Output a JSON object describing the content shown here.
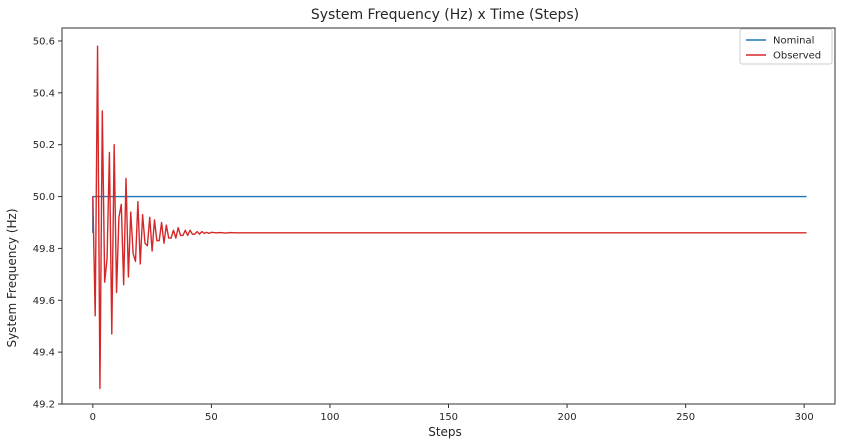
{
  "chart_data": {
    "type": "line",
    "title": "System Frequency (Hz) x Time (Steps)",
    "xlabel": "Steps",
    "ylabel": "System Frequency (Hz)",
    "xlim": [
      -13,
      313
    ],
    "ylim": [
      49.2,
      50.65
    ],
    "x_ticks": [
      0,
      50,
      100,
      150,
      200,
      250,
      300
    ],
    "y_ticks": [
      49.2,
      49.4,
      49.6,
      49.8,
      50.0,
      50.2,
      50.4,
      50.6
    ],
    "grid": false,
    "legend_position": "top-right",
    "series": [
      {
        "name": "Nominal",
        "color": "#1f77b4",
        "x": [
          0,
          0,
          301
        ],
        "y": [
          49.86,
          50.0,
          50.0
        ]
      },
      {
        "name": "Observed",
        "color": "#d62728",
        "x": [
          0,
          1,
          2,
          3,
          4,
          5,
          6,
          7,
          8,
          9,
          10,
          11,
          12,
          13,
          14,
          15,
          16,
          17,
          18,
          19,
          20,
          21,
          22,
          23,
          24,
          25,
          26,
          27,
          28,
          29,
          30,
          31,
          32,
          33,
          34,
          35,
          36,
          37,
          38,
          39,
          40,
          41,
          42,
          43,
          44,
          45,
          46,
          47,
          48,
          49,
          50,
          52,
          54,
          56,
          58,
          60,
          65,
          70,
          80,
          100,
          150,
          200,
          250,
          301
        ],
        "y": [
          50.0,
          49.54,
          50.58,
          49.26,
          50.33,
          49.67,
          49.76,
          50.17,
          49.47,
          50.2,
          49.63,
          49.92,
          49.97,
          49.66,
          50.07,
          49.69,
          49.94,
          49.78,
          49.75,
          49.98,
          49.74,
          49.93,
          49.82,
          49.81,
          49.92,
          49.79,
          49.91,
          49.83,
          49.83,
          49.9,
          49.82,
          49.89,
          49.84,
          49.84,
          49.87,
          49.84,
          49.88,
          49.85,
          49.85,
          49.87,
          49.85,
          49.87,
          49.855,
          49.855,
          49.865,
          49.855,
          49.865,
          49.858,
          49.862,
          49.858,
          49.862,
          49.86,
          49.861,
          49.859,
          49.861,
          49.86,
          49.86,
          49.86,
          49.86,
          49.86,
          49.86,
          49.86,
          49.86,
          49.86
        ]
      }
    ]
  }
}
